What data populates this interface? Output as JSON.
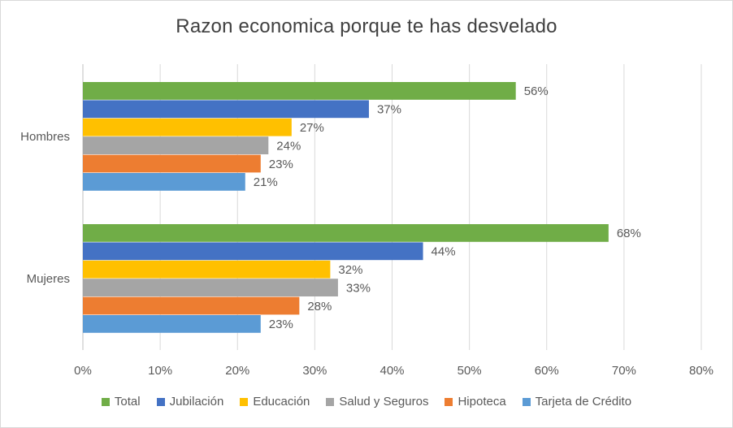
{
  "chart_data": {
    "type": "bar",
    "orientation": "horizontal",
    "title": "Razon economica porque te has desvelado",
    "categories": [
      "Hombres",
      "Mujeres"
    ],
    "series": [
      {
        "name": "Total",
        "values": [
          56,
          68
        ],
        "labels": [
          "56%",
          "68%"
        ],
        "color": "#70AD47"
      },
      {
        "name": "Jubilación",
        "values": [
          37,
          44
        ],
        "labels": [
          "37%",
          "44%"
        ],
        "color": "#4472C4"
      },
      {
        "name": "Educación",
        "values": [
          27,
          32
        ],
        "labels": [
          "27%",
          "32%"
        ],
        "color": "#FFC000"
      },
      {
        "name": "Salud y Seguros",
        "values": [
          24,
          33
        ],
        "labels": [
          "24%",
          "33%"
        ],
        "color": "#A5A5A5"
      },
      {
        "name": "Hipoteca",
        "values": [
          23,
          28
        ],
        "labels": [
          "23%",
          "28%"
        ],
        "color": "#ED7D31"
      },
      {
        "name": "Tarjeta de Crédito",
        "values": [
          21,
          23
        ],
        "labels": [
          "21%",
          "23%"
        ],
        "color": "#5B9BD5"
      }
    ],
    "xaxis": {
      "min": 0,
      "max": 80,
      "ticks": [
        0,
        10,
        20,
        30,
        40,
        50,
        60,
        70,
        80
      ],
      "tick_labels": [
        "0%",
        "10%",
        "20%",
        "30%",
        "40%",
        "50%",
        "60%",
        "70%",
        "80%"
      ],
      "grid": true
    },
    "legend_position": "bottom"
  }
}
